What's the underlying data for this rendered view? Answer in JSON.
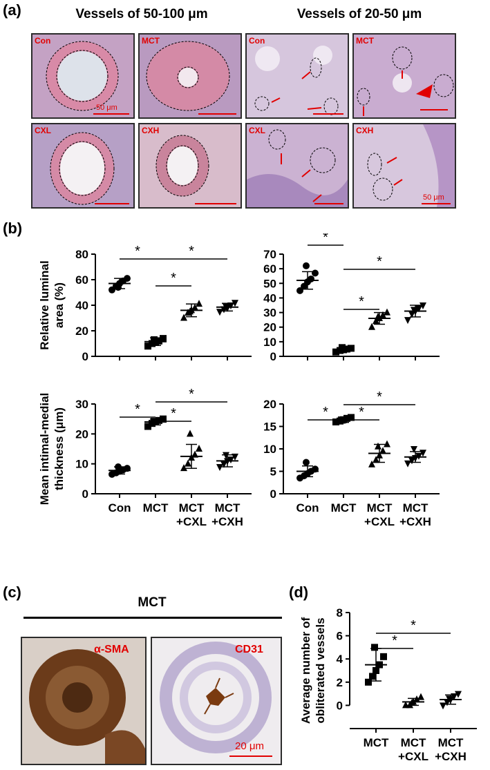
{
  "panel_a": {
    "letter": "(a)",
    "heading_left": "Vessels of 50-100 μm",
    "heading_right": "Vessels of 20-50 μm",
    "tiles": [
      {
        "label": "Con",
        "scale": "50 μm"
      },
      {
        "label": "MCT",
        "scale": ""
      },
      {
        "label": "Con",
        "scale": ""
      },
      {
        "label": "MCT",
        "scale": ""
      },
      {
        "label": "CXL",
        "scale": ""
      },
      {
        "label": "CXH",
        "scale": ""
      },
      {
        "label": "CXL",
        "scale": ""
      },
      {
        "label": "CXH",
        "scale": "50 μm"
      }
    ]
  },
  "panel_b": {
    "letter": "(b)"
  },
  "panel_c": {
    "letter": "(c)",
    "heading": "MCT",
    "left_stain": "α-SMA",
    "right_stain": "CD31",
    "scale": "20 μm"
  },
  "panel_d": {
    "letter": "(d)"
  },
  "colors": {
    "label_red": "#e10000",
    "tile_border": "#2b2b2b"
  },
  "chart_data": [
    {
      "id": "b1",
      "type": "scatter",
      "ylabel": "Relative luminal area (%)",
      "ylim": [
        0,
        80
      ],
      "yticks": [
        0,
        20,
        40,
        60,
        80
      ],
      "categories": [
        "Con",
        "MCT",
        "MCT\n+CXL",
        "MCT\n+CXH"
      ],
      "show_xlabels": false,
      "groups": [
        {
          "mean": 57,
          "sd": 4,
          "marker": "circle",
          "points": [
            52,
            55,
            57,
            59,
            61,
            54
          ]
        },
        {
          "mean": 11.5,
          "sd": 3,
          "marker": "square",
          "points": [
            8,
            10,
            11,
            12,
            14,
            13
          ]
        },
        {
          "mean": 36,
          "sd": 5,
          "marker": "triangle-up",
          "points": [
            30,
            34,
            36,
            38,
            41,
            35
          ]
        },
        {
          "mean": 38.5,
          "sd": 3,
          "marker": "triangle-down",
          "points": [
            35,
            37,
            38,
            40,
            42,
            39
          ]
        }
      ],
      "significance": [
        [
          0,
          1,
          "*"
        ],
        [
          1,
          2,
          "*"
        ],
        [
          1,
          3,
          "*"
        ]
      ]
    },
    {
      "id": "b2",
      "type": "scatter",
      "ylabel": "",
      "ylim": [
        0,
        70
      ],
      "yticks": [
        0,
        10,
        20,
        30,
        40,
        50,
        60,
        70
      ],
      "categories": [
        "Con",
        "MCT",
        "MCT\n+CXL",
        "MCT\n+CXH"
      ],
      "show_xlabels": false,
      "groups": [
        {
          "mean": 52,
          "sd": 6,
          "marker": "circle",
          "points": [
            45,
            48,
            51,
            53,
            57,
            62
          ]
        },
        {
          "mean": 4.5,
          "sd": 1.5,
          "marker": "square",
          "points": [
            3,
            4,
            4.5,
            5,
            5.5,
            6
          ]
        },
        {
          "mean": 26,
          "sd": 4,
          "marker": "triangle-up",
          "points": [
            20,
            24,
            26,
            28,
            30,
            27
          ]
        },
        {
          "mean": 31,
          "sd": 4,
          "marker": "triangle-down",
          "points": [
            25,
            29,
            31,
            33,
            35,
            32
          ]
        }
      ],
      "significance": [
        [
          0,
          1,
          "*"
        ],
        [
          1,
          2,
          "*"
        ],
        [
          1,
          3,
          "*"
        ]
      ]
    },
    {
      "id": "b3",
      "type": "scatter",
      "ylabel": "Mean intimal-medial thickness (μm)",
      "ylim": [
        0,
        30
      ],
      "yticks": [
        0,
        10,
        20,
        30
      ],
      "categories": [
        "Con",
        "MCT",
        "MCT\n+CXL",
        "MCT\n+CXH"
      ],
      "show_xlabels": true,
      "groups": [
        {
          "mean": 7.8,
          "sd": 1.2,
          "marker": "circle",
          "points": [
            6.5,
            7,
            7.5,
            8,
            8.5,
            9
          ]
        },
        {
          "mean": 24,
          "sd": 1,
          "marker": "square",
          "points": [
            22.5,
            23.5,
            24,
            24.5,
            25,
            24.2
          ]
        },
        {
          "mean": 12.5,
          "sd": 4,
          "marker": "triangle-up",
          "points": [
            8.5,
            10,
            12,
            13,
            15,
            20
          ]
        },
        {
          "mean": 11,
          "sd": 2,
          "marker": "triangle-down",
          "points": [
            9,
            10,
            11,
            11.5,
            12.5,
            13
          ]
        }
      ],
      "significance": [
        [
          0,
          1,
          "*"
        ],
        [
          1,
          2,
          "*"
        ],
        [
          1,
          3,
          "*"
        ]
      ]
    },
    {
      "id": "b4",
      "type": "scatter",
      "ylabel": "",
      "ylim": [
        0,
        20
      ],
      "yticks": [
        0,
        5,
        10,
        15,
        20
      ],
      "categories": [
        "Con",
        "MCT",
        "MCT\n+CXL",
        "MCT\n+CXH"
      ],
      "show_xlabels": true,
      "groups": [
        {
          "mean": 5,
          "sd": 1.2,
          "marker": "circle",
          "points": [
            3.5,
            4,
            4.5,
            5,
            5.5,
            7
          ]
        },
        {
          "mean": 16.5,
          "sd": 0.6,
          "marker": "square",
          "points": [
            16,
            16.2,
            16.5,
            16.8,
            17,
            16.4
          ]
        },
        {
          "mean": 9,
          "sd": 2,
          "marker": "triangle-up",
          "points": [
            6.5,
            7.5,
            8.5,
            9.5,
            11,
            10.5
          ]
        },
        {
          "mean": 8.2,
          "sd": 1.2,
          "marker": "triangle-down",
          "points": [
            6.8,
            7.5,
            8,
            8.5,
            9.2,
            10
          ]
        }
      ],
      "significance": [
        [
          0,
          1,
          "*"
        ],
        [
          1,
          2,
          "*"
        ],
        [
          1,
          3,
          "*"
        ]
      ]
    },
    {
      "id": "d",
      "type": "scatter",
      "ylabel": "Average number of obliterated vessels",
      "ylim": [
        -2,
        8
      ],
      "yticks": [
        0,
        2,
        4,
        6,
        8
      ],
      "categories": [
        "MCT",
        "MCT\n+CXL",
        "MCT\n+CXH"
      ],
      "show_xlabels": true,
      "groups": [
        {
          "mean": 3.5,
          "sd": 1.4,
          "marker": "square",
          "points": [
            2,
            2.5,
            3,
            3.5,
            4.2,
            5
          ]
        },
        {
          "mean": 0.3,
          "sd": 0.3,
          "marker": "triangle-up",
          "points": [
            0,
            0,
            0.3,
            0.5,
            0.7,
            0.2
          ]
        },
        {
          "mean": 0.5,
          "sd": 0.4,
          "marker": "triangle-down",
          "points": [
            0,
            0.3,
            0.5,
            0.8,
            1,
            0.6
          ]
        }
      ],
      "significance": [
        [
          0,
          1,
          "*"
        ],
        [
          0,
          2,
          "*"
        ]
      ]
    }
  ]
}
